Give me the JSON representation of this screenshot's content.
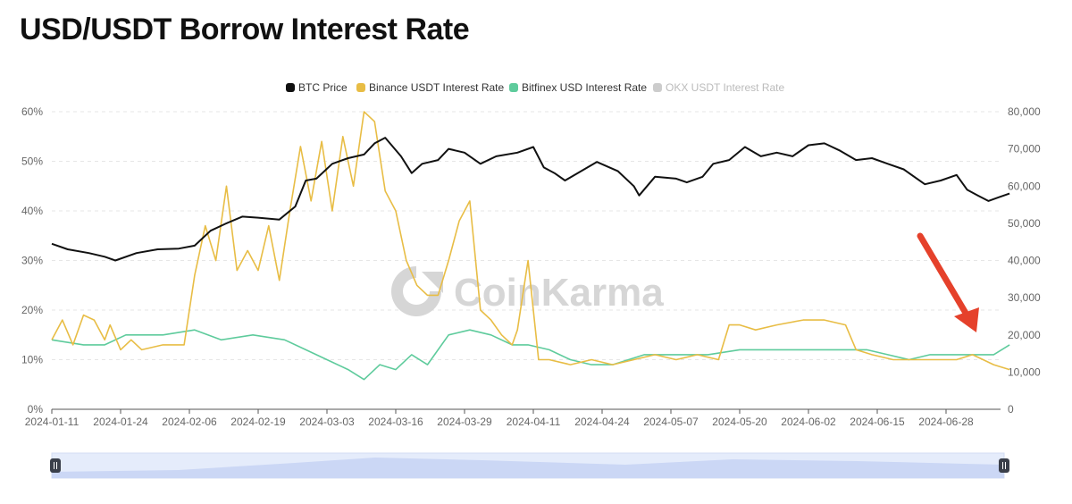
{
  "header": {
    "title": "USD/USDT Borrow Interest Rate"
  },
  "watermark": "CoinKarma",
  "chart_data": {
    "type": "line",
    "x_ticks": [
      "2024-01-11",
      "2024-01-24",
      "2024-02-06",
      "2024-02-19",
      "2024-03-03",
      "2024-03-16",
      "2024-03-29",
      "2024-04-11",
      "2024-04-24",
      "2024-05-07",
      "2024-05-20",
      "2024-06-02",
      "2024-06-15",
      "2024-06-28"
    ],
    "left_axis": {
      "ylim": [
        0,
        60
      ],
      "ticks": [
        "0%",
        "10%",
        "20%",
        "30%",
        "40%",
        "50%",
        "60%"
      ]
    },
    "right_axis": {
      "ylim": [
        0,
        80000
      ],
      "ticks": [
        "0",
        "10,000",
        "20,000",
        "30,000",
        "40,000",
        "50,000",
        "60,000",
        "70,000",
        "80,000"
      ]
    },
    "grid": true,
    "legend_position": "top-center",
    "series": [
      {
        "name": "BTC Price",
        "axis": "right",
        "color": "#111111",
        "visible": true,
        "x": [
          "2024-01-11",
          "2024-01-14",
          "2024-01-18",
          "2024-01-21",
          "2024-01-23",
          "2024-01-27",
          "2024-01-31",
          "2024-02-04",
          "2024-02-07",
          "2024-02-10",
          "2024-02-13",
          "2024-02-16",
          "2024-02-19",
          "2024-02-23",
          "2024-02-26",
          "2024-02-28",
          "2024-03-01",
          "2024-03-04",
          "2024-03-07",
          "2024-03-10",
          "2024-03-12",
          "2024-03-14",
          "2024-03-17",
          "2024-03-19",
          "2024-03-21",
          "2024-03-24",
          "2024-03-26",
          "2024-03-29",
          "2024-04-01",
          "2024-04-04",
          "2024-04-08",
          "2024-04-11",
          "2024-04-13",
          "2024-04-15",
          "2024-04-17",
          "2024-04-20",
          "2024-04-23",
          "2024-04-27",
          "2024-04-30",
          "2024-05-01",
          "2024-05-04",
          "2024-05-08",
          "2024-05-10",
          "2024-05-13",
          "2024-05-15",
          "2024-05-18",
          "2024-05-21",
          "2024-05-24",
          "2024-05-27",
          "2024-05-30",
          "2024-06-02",
          "2024-06-05",
          "2024-06-08",
          "2024-06-11",
          "2024-06-14",
          "2024-06-17",
          "2024-06-20",
          "2024-06-24",
          "2024-06-27",
          "2024-06-30",
          "2024-07-02",
          "2024-07-04",
          "2024-07-06",
          "2024-07-08",
          "2024-07-10"
        ],
        "values": [
          44500,
          43000,
          42000,
          41000,
          40000,
          42000,
          43000,
          43200,
          44000,
          48000,
          50000,
          51800,
          51500,
          51000,
          54500,
          61500,
          62000,
          66000,
          67500,
          68500,
          71500,
          73000,
          68000,
          63500,
          66000,
          67000,
          70000,
          69000,
          66000,
          68000,
          69000,
          70500,
          65000,
          63500,
          61500,
          64000,
          66500,
          64000,
          60000,
          57500,
          62500,
          62000,
          61000,
          62500,
          66000,
          67000,
          70500,
          68000,
          69000,
          68000,
          71000,
          71500,
          69500,
          67000,
          67500,
          66000,
          64500,
          60500,
          61500,
          63000,
          59000,
          57500,
          56000,
          57000,
          58000
        ]
      },
      {
        "name": "Binance USDT Interest Rate",
        "axis": "left",
        "color": "#e8bd45",
        "visible": true,
        "x": [
          "2024-01-11",
          "2024-01-13",
          "2024-01-15",
          "2024-01-17",
          "2024-01-19",
          "2024-01-21",
          "2024-01-22",
          "2024-01-24",
          "2024-01-26",
          "2024-01-28",
          "2024-02-01",
          "2024-02-05",
          "2024-02-07",
          "2024-02-09",
          "2024-02-11",
          "2024-02-13",
          "2024-02-15",
          "2024-02-17",
          "2024-02-19",
          "2024-02-21",
          "2024-02-23",
          "2024-02-25",
          "2024-02-27",
          "2024-02-29",
          "2024-03-02",
          "2024-03-04",
          "2024-03-06",
          "2024-03-08",
          "2024-03-10",
          "2024-03-12",
          "2024-03-14",
          "2024-03-16",
          "2024-03-18",
          "2024-03-20",
          "2024-03-22",
          "2024-03-24",
          "2024-03-26",
          "2024-03-28",
          "2024-03-30",
          "2024-04-01",
          "2024-04-03",
          "2024-04-05",
          "2024-04-07",
          "2024-04-08",
          "2024-04-10",
          "2024-04-12",
          "2024-04-14",
          "2024-04-18",
          "2024-04-22",
          "2024-04-26",
          "2024-04-30",
          "2024-05-04",
          "2024-05-08",
          "2024-05-12",
          "2024-05-16",
          "2024-05-18",
          "2024-05-20",
          "2024-05-23",
          "2024-05-27",
          "2024-06-01",
          "2024-06-05",
          "2024-06-09",
          "2024-06-11",
          "2024-06-14",
          "2024-06-18",
          "2024-06-22",
          "2024-06-26",
          "2024-06-30",
          "2024-07-03",
          "2024-07-05",
          "2024-07-07",
          "2024-07-10"
        ],
        "values": [
          14,
          18,
          13,
          19,
          18,
          14,
          17,
          12,
          14,
          12,
          13,
          13,
          27,
          37,
          30,
          45,
          28,
          32,
          28,
          37,
          26,
          40,
          53,
          42,
          54,
          40,
          55,
          45,
          60,
          58,
          44,
          40,
          30,
          25,
          23,
          23,
          30,
          38,
          42,
          20,
          18,
          15,
          13,
          16,
          30,
          10,
          10,
          9,
          10,
          9,
          10,
          11,
          10,
          11,
          10,
          17,
          17,
          16,
          17,
          18,
          18,
          17,
          12,
          11,
          10,
          10,
          10,
          10,
          11,
          10,
          9,
          8
        ]
      },
      {
        "name": "Bitfinex USD Interest Rate",
        "axis": "left",
        "color": "#5ecb9c",
        "visible": true,
        "x": [
          "2024-01-11",
          "2024-01-17",
          "2024-01-21",
          "2024-01-25",
          "2024-02-01",
          "2024-02-07",
          "2024-02-12",
          "2024-02-18",
          "2024-02-24",
          "2024-02-28",
          "2024-03-03",
          "2024-03-07",
          "2024-03-10",
          "2024-03-13",
          "2024-03-16",
          "2024-03-19",
          "2024-03-22",
          "2024-03-26",
          "2024-03-30",
          "2024-04-03",
          "2024-04-07",
          "2024-04-10",
          "2024-04-14",
          "2024-04-18",
          "2024-04-22",
          "2024-04-26",
          "2024-05-02",
          "2024-05-08",
          "2024-05-14",
          "2024-05-20",
          "2024-05-26",
          "2024-06-01",
          "2024-06-07",
          "2024-06-13",
          "2024-06-17",
          "2024-06-21",
          "2024-06-25",
          "2024-06-29",
          "2024-07-03",
          "2024-07-07",
          "2024-07-10"
        ],
        "values": [
          14,
          13,
          13,
          15,
          15,
          16,
          14,
          15,
          14,
          12,
          10,
          8,
          6,
          9,
          8,
          11,
          9,
          15,
          16,
          15,
          13,
          13,
          12,
          10,
          9,
          9,
          11,
          11,
          11,
          12,
          12,
          12,
          12,
          12,
          11,
          10,
          11,
          11,
          11,
          11,
          13
        ]
      },
      {
        "name": "OKX USDT Interest Rate",
        "axis": "left",
        "color": "#cccccc",
        "visible": false,
        "x": [],
        "values": []
      }
    ]
  }
}
